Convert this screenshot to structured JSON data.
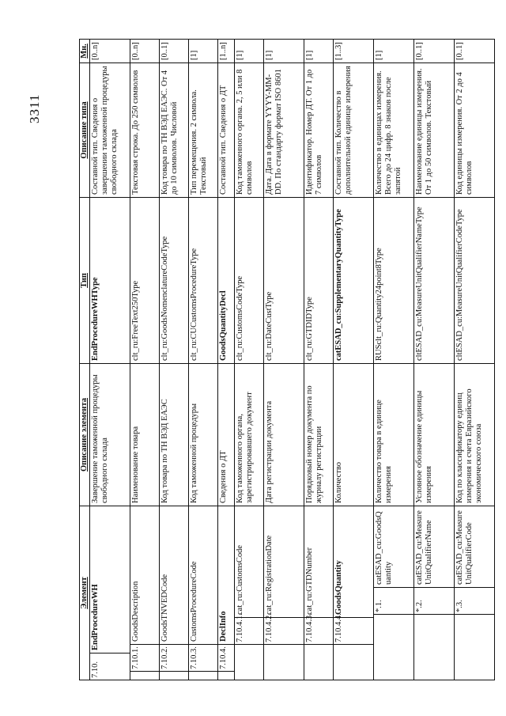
{
  "page_number": "3311",
  "table": {
    "headers": [
      "Элемент",
      "Описание элемента",
      "Тип",
      "Описание типа",
      "Мн."
    ],
    "rows": [
      {
        "level": 1,
        "num": "7.10.",
        "name": "EndProcedureWH",
        "name_bold": true,
        "desc": "Завершение таможенной процедуры свободного склада",
        "type": "EndProcedureWHType",
        "type_bold": true,
        "type_desc": "Составной тип. Сведения о завершении таможенной процедуры свободного склада",
        "mult": "[0..n]"
      },
      {
        "level": 2,
        "num": "7.10.1.",
        "name": "GoodsDescription",
        "desc": "Наименование товара",
        "type": "clt_ru:FreeText250Type",
        "type_desc": "Текстовая строка. До 250 символов",
        "mult": "[0..n]"
      },
      {
        "level": 2,
        "num": "7.10.2.",
        "name": "GoodsTNVEDCode",
        "desc": "Код товара по ТН ВЭД ЕАЭС",
        "type": "clt_ru:GoodsNomenclatureCodeType",
        "type_desc": "Код товара по ТН ВЭД ЕАЭС. От 4 до 10 символов. Числовой",
        "mult": "[0..1]"
      },
      {
        "level": 2,
        "num": "7.10.3.",
        "name": "CustomsProcedureCode",
        "desc": "Код таможенной процедуры",
        "type": "clt_ru:CUCustomsProcedureType",
        "type_desc": "Тип перемещения. 2 символа. Текстовый",
        "mult": "[1]"
      },
      {
        "level": 2,
        "num": "7.10.4.",
        "name": "DeclInfo",
        "name_bold": true,
        "desc": "Сведения о ДТ",
        "type": "GoodsQuantityDecl",
        "type_bold": true,
        "type_desc": "Составной тип. Сведения о ДТ",
        "mult": "[1..n]"
      },
      {
        "level": 3,
        "num": "7.10.4.1.",
        "name": "cat_ru:CustomsCode",
        "desc": "Код таможенного органа, зарегистрировавшего документ",
        "type": "clt_ru:CustomsCodeType",
        "type_desc": "Код таможенного органа. 2, 5 или 8 символов",
        "mult": "[1]"
      },
      {
        "level": 3,
        "num": "7.10.4.2.",
        "name": "cat_ru:RegistrationDate",
        "desc": "Дата регистрации документа",
        "type": "clt_ru:DateCustType",
        "type_desc": "Дата. Дата в формате YYYY-MM-DD. По стандарту формат ISO 8601",
        "mult": "[1]"
      },
      {
        "level": 3,
        "num": "7.10.4.3.",
        "name": "cat_ru:GTDNumber",
        "desc": "Порядковый номер документа по журналу регистрации",
        "type": "clt_ru:GTDIDType",
        "type_desc": "Идентификатор. Номер ДТ. От 1 до 7 символов",
        "mult": "[1]"
      },
      {
        "level": 3,
        "num": "7.10.4.4.",
        "name": "GoodsQuantity",
        "name_bold": true,
        "desc": "Количество",
        "type": "catESAD_cu:SupplementaryQuantityType",
        "type_bold": true,
        "type_desc": "Составной тип. Количество в дополнительной единице измерения",
        "mult": "[1..3]"
      },
      {
        "level": 4,
        "num": "*.1.",
        "name": "catESAD_cu:GoodsQuantity",
        "desc": "Количество товара в единице измерения",
        "type": "RUSclt_ru:Quantity24point8Type",
        "type_desc": "Количество в единицах измерения. Всего до 24 цифр. 8 знаков после запятой",
        "mult": "[1]"
      },
      {
        "level": 4,
        "num": "*.2.",
        "name": "catESAD_cu:MeasureUnitQualifierName",
        "desc": "Условное обозначение единицы измерения",
        "type": "cltESAD_cu:MeasureUnitQualifierNameType",
        "type_desc": "Наименование единицы измерения. От 1 до 50 символов. Текстовый",
        "mult": "[0..1]"
      },
      {
        "level": 4,
        "num": "*.3.",
        "name": "catESAD_cu:MeasureUnitQualifierCode",
        "desc": "Код по классификатору единиц измерения и счета Евразийского экономического союза",
        "type": "cltESAD_cu:MeasureUnitQualifierCodeType",
        "type_desc": "Код единицы измерения. От 2 до 4 символов",
        "mult": "[0..1]"
      }
    ]
  }
}
